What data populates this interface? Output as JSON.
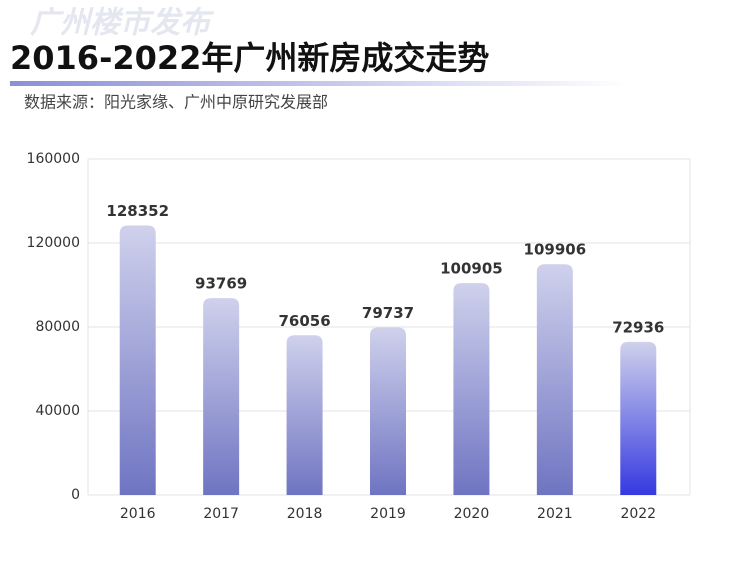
{
  "chart_data": {
    "type": "bar",
    "watermark": "广州楼市发布",
    "title": "2016-2022年广州新房成交走势",
    "subtitle": "数据来源：阳光家缘、广州中原研究发展部",
    "categories": [
      "2016",
      "2017",
      "2018",
      "2019",
      "2020",
      "2021",
      "2022"
    ],
    "values": [
      128352,
      93769,
      76056,
      79737,
      100905,
      109906,
      72936
    ],
    "colors": [
      "#6f74c2",
      "#6f74c2",
      "#6f74c2",
      "#6f74c2",
      "#6f74c2",
      "#6f74c2",
      "#3539e0"
    ],
    "ylim": [
      0,
      160000
    ],
    "yticks": [
      0,
      40000,
      80000,
      120000,
      160000
    ],
    "grid": true
  }
}
